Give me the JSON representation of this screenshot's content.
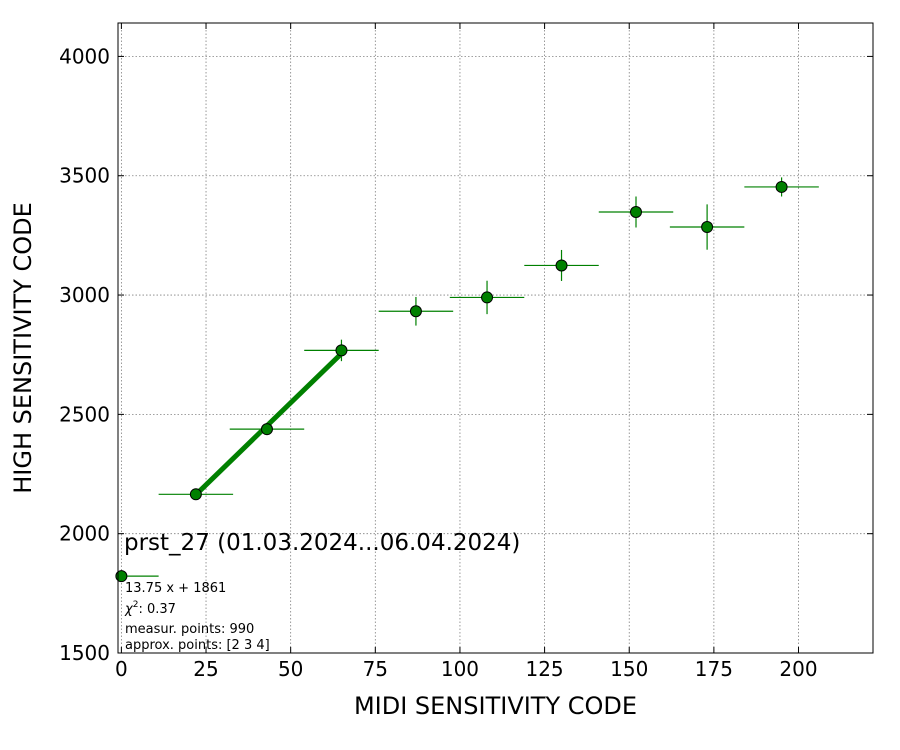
{
  "chart_data": {
    "type": "scatter",
    "title": "prst_27 (01.03.2024...06.04.2024)",
    "xlabel": "MIDI SENSITIVITY CODE",
    "ylabel": "HIGH SENSITIVITY CODE",
    "xlim": [
      -1,
      222
    ],
    "ylim": [
      1500,
      4140
    ],
    "xticks": [
      0,
      25,
      50,
      75,
      100,
      125,
      150,
      175,
      200
    ],
    "yticks": [
      1500,
      2000,
      2500,
      3000,
      3500,
      4000
    ],
    "grid": true,
    "colors": {
      "points": "#008000",
      "edge": "#000000",
      "fit": "#008000",
      "grid": "#808080"
    },
    "series": [
      {
        "points": [
          {
            "x": 0,
            "y": 1822,
            "xerr": 11,
            "yerr": 0
          },
          {
            "x": 22,
            "y": 2165,
            "xerr": 11,
            "yerr": 10
          },
          {
            "x": 43,
            "y": 2438,
            "xerr": 11,
            "yerr": 25
          },
          {
            "x": 65,
            "y": 2768,
            "xerr": 11,
            "yerr": 45
          },
          {
            "x": 87,
            "y": 2932,
            "xerr": 11,
            "yerr": 60
          },
          {
            "x": 108,
            "y": 2990,
            "xerr": 11,
            "yerr": 70
          },
          {
            "x": 130,
            "y": 3124,
            "xerr": 11,
            "yerr": 65
          },
          {
            "x": 152,
            "y": 3348,
            "xerr": 11,
            "yerr": 65
          },
          {
            "x": 173,
            "y": 3285,
            "xerr": 11,
            "yerr": 95
          },
          {
            "x": 195,
            "y": 3453,
            "xerr": 11,
            "yerr": 40
          }
        ]
      }
    ],
    "fit": {
      "slope": 13.75,
      "intercept": 1861,
      "x_range": [
        22,
        65
      ]
    },
    "annotations": {
      "equation": "13.75 x + 1861",
      "chi_label": "χ",
      "chi_power": "2",
      "chi_value": ": 0.37",
      "measur": "measur. points: 990",
      "approx": "approx. points: [2 3 4]"
    }
  }
}
